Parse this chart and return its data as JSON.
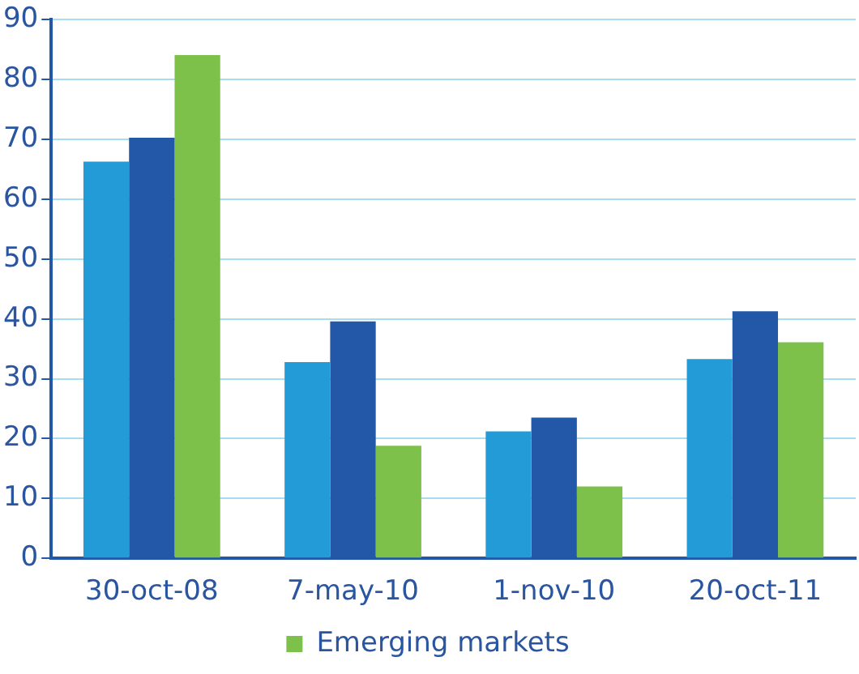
{
  "chart_data": {
    "type": "bar",
    "categories": [
      "30-oct-08",
      "7-may-10",
      "1-nov-10",
      "20-oct-11"
    ],
    "series": [
      {
        "color": "#239bd6",
        "values": [
          66.3,
          32.8,
          21.2,
          33.3
        ]
      },
      {
        "color": "#2357a8",
        "values": [
          70.3,
          39.6,
          23.5,
          41.3
        ]
      },
      {
        "name": "Emerging markets",
        "color": "#7dc14b",
        "values": [
          84.1,
          18.8,
          12.0,
          36.1
        ]
      }
    ],
    "ylim": [
      0,
      90
    ],
    "yticks": [
      0,
      10,
      20,
      30,
      40,
      50,
      60,
      70,
      80,
      90
    ],
    "grid": "y",
    "legend": "bottom"
  }
}
